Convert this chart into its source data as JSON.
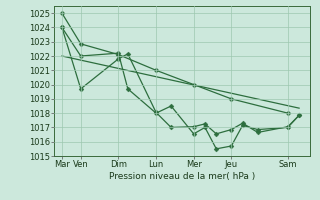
{
  "bg_color": "#cce8dc",
  "grid_color": "#9dc8b0",
  "line_color": "#2d6e3e",
  "xtick_labels": [
    "Mar",
    "Ven",
    "Dim",
    "Lun",
    "Mer",
    "Jeu",
    "Sam"
  ],
  "xtick_positions": [
    0,
    0.5,
    1.5,
    2.5,
    3.5,
    4.5,
    6.0
  ],
  "ylabel": "Pression niveau de la mer( hPa )",
  "ylim": [
    1015,
    1025.5
  ],
  "yticks": [
    1015,
    1016,
    1017,
    1018,
    1019,
    1020,
    1021,
    1022,
    1023,
    1024,
    1025
  ],
  "series": [
    {
      "x": [
        0.0,
        0.5,
        1.5,
        1.75,
        2.5,
        2.9,
        3.5,
        3.8,
        4.1,
        4.5,
        4.8,
        5.2,
        6.0,
        6.3
      ],
      "y": [
        1024.0,
        1022.0,
        1022.2,
        1019.7,
        1018.0,
        1018.5,
        1016.55,
        1017.0,
        1015.5,
        1015.7,
        1017.15,
        1016.85,
        1017.0,
        1017.85
      ]
    },
    {
      "x": [
        0.0,
        0.5,
        1.5,
        1.75,
        2.5,
        2.9,
        3.5,
        3.8,
        4.1,
        4.5,
        4.8,
        5.2,
        6.0,
        6.3
      ],
      "y": [
        1024.0,
        1019.7,
        1021.8,
        1022.15,
        1018.05,
        1017.0,
        1017.05,
        1017.25,
        1016.55,
        1016.85,
        1017.3,
        1016.65,
        1017.05,
        1017.85
      ]
    },
    {
      "x": [
        0.0,
        0.5,
        1.5,
        2.5,
        3.5,
        4.5,
        6.0
      ],
      "y": [
        1025.0,
        1022.85,
        1022.1,
        1021.0,
        1020.0,
        1019.0,
        1018.0
      ]
    },
    {
      "x": [
        0.0,
        6.3
      ],
      "y": [
        1022.0,
        1018.35
      ],
      "no_marker": true
    }
  ],
  "marker": "D",
  "markersize": 2.5,
  "linewidth": 0.9,
  "axis_fontsize": 6.5,
  "tick_fontsize": 6.0
}
